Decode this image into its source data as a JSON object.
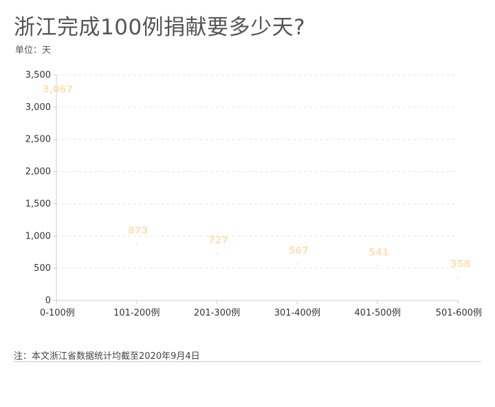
{
  "chart_data": {
    "type": "line",
    "title": "浙江完成100例捐献要多少天?",
    "subtitle": "单位：天",
    "categories": [
      "0-100例",
      "101-200例",
      "201-300例",
      "301-400例",
      "401-500例",
      "501-600例"
    ],
    "values": [
      3067,
      873,
      727,
      567,
      541,
      358
    ],
    "value_labels": [
      "3,067",
      "873",
      "727",
      "567",
      "541",
      "358"
    ],
    "yticks": [
      "0",
      "500",
      "1,000",
      "1,500",
      "2,000",
      "2,500",
      "3,000",
      "3,500"
    ],
    "ylim": [
      0,
      3500
    ],
    "grid": true,
    "label_color": "#fde2b8",
    "axis_color": "#cccccc",
    "grid_color": "#e6e6e6"
  },
  "footer": {
    "note": "注：本文浙江省数据统计均截至2020年9月4日"
  }
}
